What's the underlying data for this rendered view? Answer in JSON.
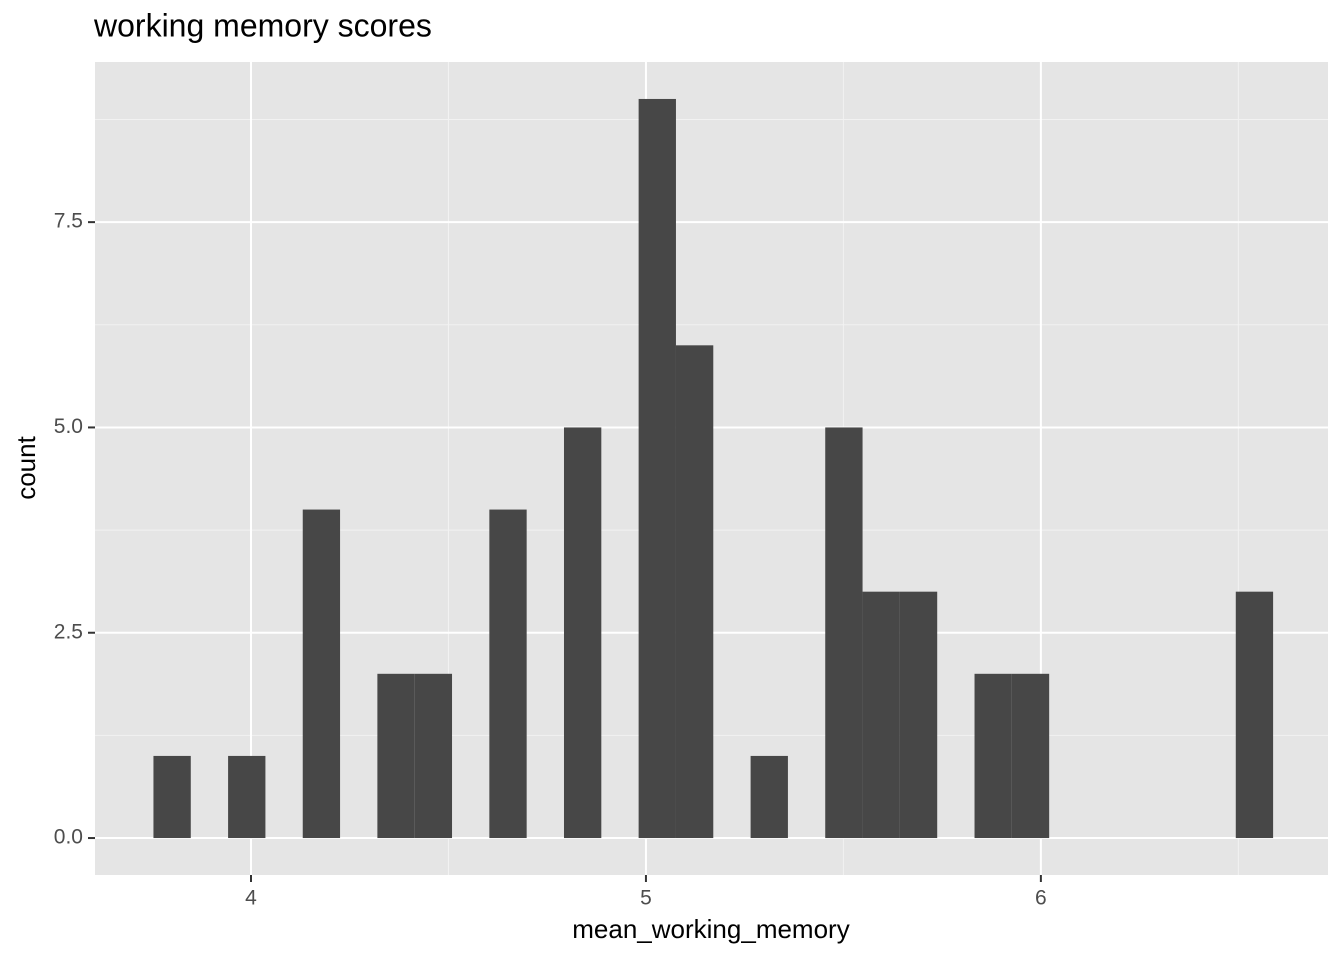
{
  "chart_data": {
    "type": "histogram",
    "title": "working memory scores",
    "x_label": "mean_working_memory",
    "y_label": "count",
    "bins": [
      3.753,
      3.8475,
      3.942,
      4.0365,
      4.131,
      4.2255,
      4.32,
      4.4145,
      4.509,
      4.6035,
      4.698,
      4.7925,
      4.887,
      4.9815,
      5.076,
      5.1705,
      5.265,
      5.3595,
      5.454,
      5.5485,
      5.643,
      5.7375,
      5.832,
      5.9265,
      6.021,
      6.1155,
      6.21,
      6.3045,
      6.399,
      6.4935,
      6.588
    ],
    "values": [
      1,
      0,
      1,
      0,
      4,
      0,
      2,
      2,
      0,
      4,
      0,
      5,
      0,
      9,
      6,
      0,
      1,
      0,
      5,
      3,
      3,
      0,
      2,
      2,
      0,
      0,
      0,
      0,
      0,
      3
    ],
    "color": "#474747",
    "xlim": [
      3.605,
      6.727
    ],
    "xticks": [
      4,
      5,
      6
    ],
    "ylim": [
      -0.45,
      9.45
    ],
    "yticks": [
      {
        "value": 0,
        "label": "0.0"
      },
      2.5,
      {
        "value": 5,
        "label": "5.0"
      },
      7.5
    ],
    "grid": true
  }
}
